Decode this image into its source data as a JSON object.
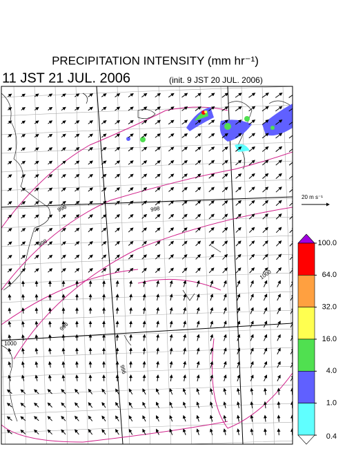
{
  "title": "PRECIPITATION INTENSITY (mm hr⁻¹)",
  "valid_time": "11 JST 21 JUL. 2006",
  "init_time": "(init. 9 JST 20 JUL. 2006)",
  "wind_scale": "20 m s⁻¹",
  "colorbar": {
    "levels": [
      {
        "value": 100,
        "label": "100.0"
      },
      {
        "value": 64,
        "label": "64.0"
      },
      {
        "value": 32,
        "label": "32.0"
      },
      {
        "value": 16,
        "label": "16.0"
      },
      {
        "value": 4,
        "label": "4.0"
      },
      {
        "value": 1,
        "label": "1.0"
      },
      {
        "value": 0.4,
        "label": "0.4"
      }
    ],
    "colors": [
      "#ff0000",
      "#ffa040",
      "#ffff50",
      "#50e050",
      "#6060ff",
      "#60ffff"
    ],
    "over_color": "#a000e0",
    "under_color": "#ffffff"
  },
  "contour_labels": [
    "1000",
    "998",
    "996",
    "998",
    "998",
    "996",
    "1000"
  ]
}
